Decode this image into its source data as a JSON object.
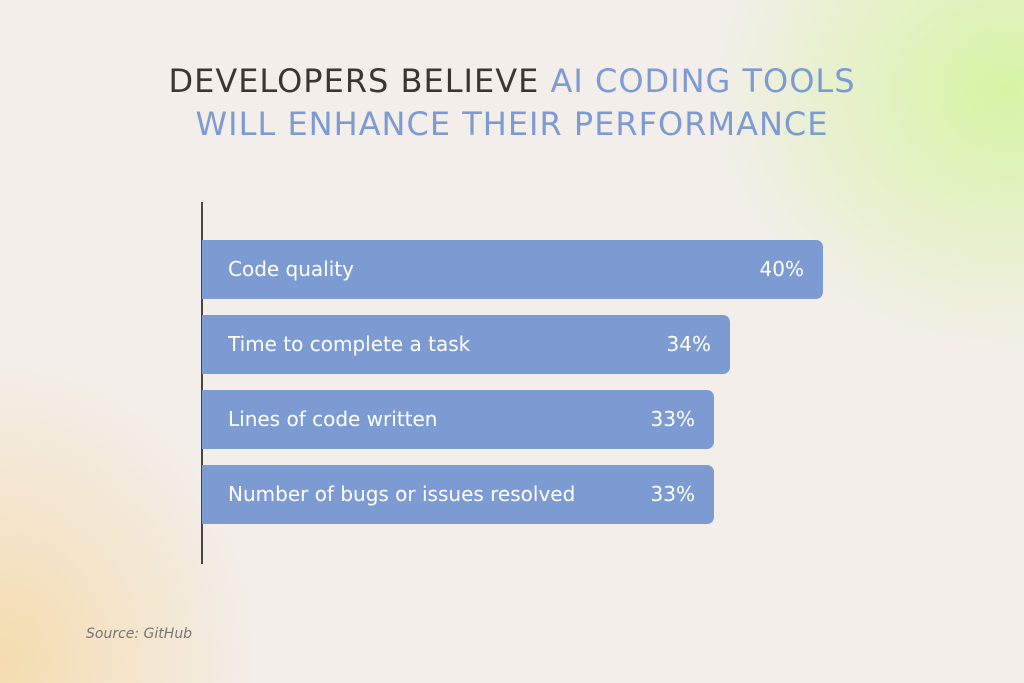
{
  "title": {
    "part1": "DEVELOPERS BELIEVE",
    "part2": "AI CODING TOOLS",
    "line2": "WILL ENHANCE THEIR PERFORMANCE"
  },
  "colors": {
    "bar": "#7d9bd3",
    "title_dark": "#3a3633",
    "title_accent": "#7d9bd3",
    "bar_text": "#ffffff"
  },
  "chart_data": {
    "type": "bar",
    "orientation": "horizontal",
    "title": "DEVELOPERS BELIEVE AI CODING TOOLS WILL ENHANCE THEIR PERFORMANCE",
    "categories": [
      "Code quality",
      "Time to complete a task",
      "Lines of code written",
      "Number of bugs or issues resolved"
    ],
    "values": [
      40,
      34,
      33,
      33
    ],
    "value_labels": [
      "40%",
      "34%",
      "33%",
      "33%"
    ],
    "unit": "%",
    "grid": false,
    "legend": "none"
  },
  "source": "Source: GitHub"
}
